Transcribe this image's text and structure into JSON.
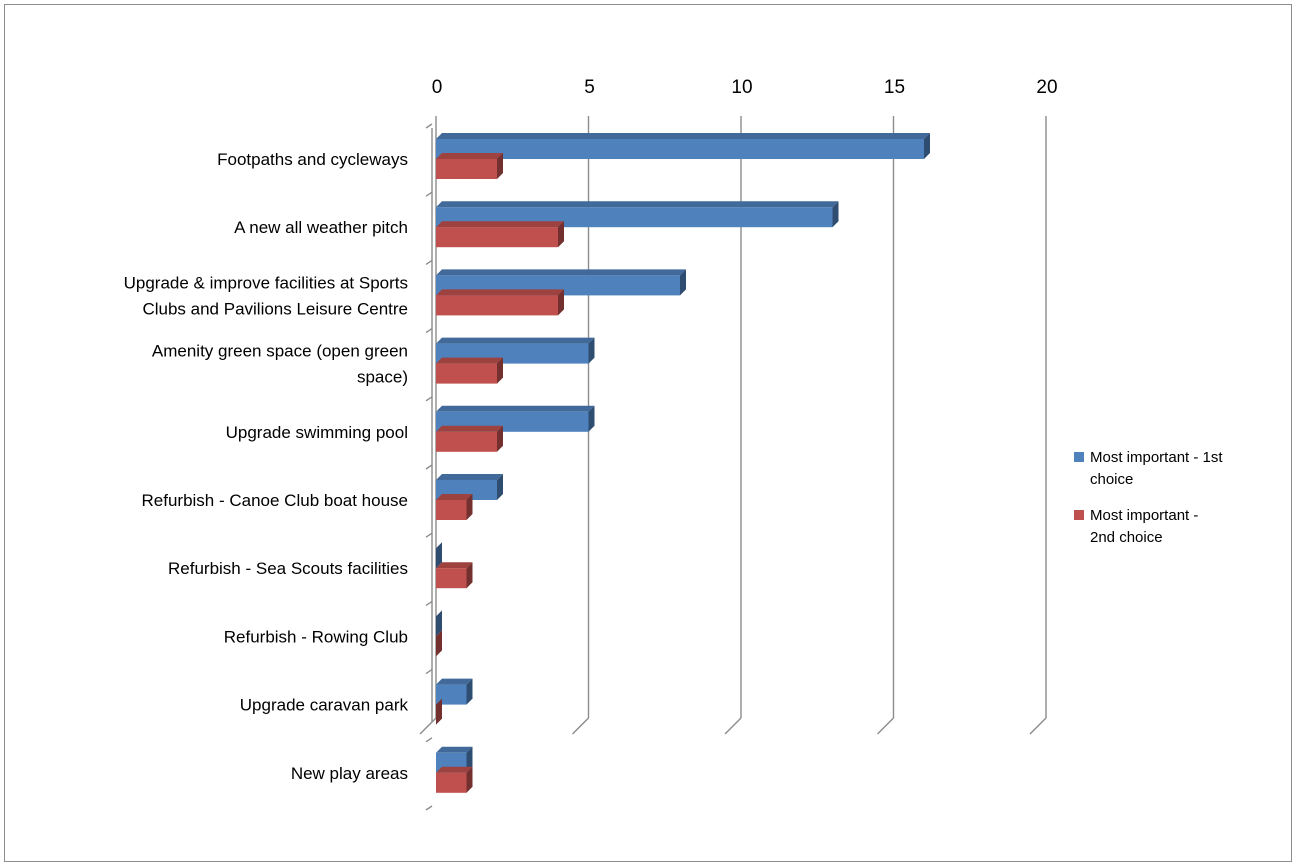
{
  "chart_data": {
    "type": "bar",
    "orientation": "horizontal",
    "style": "3d",
    "categories": [
      "Footpaths and cycleways",
      "A new all weather pitch",
      "Upgrade & improve facilities at Sports Clubs and Pavilions Leisure Centre",
      "Amenity green space (open green space)",
      "Upgrade swimming pool",
      "Refurbish - Canoe Club boat house",
      "Refurbish - Sea Scouts facilities",
      "Refurbish - Rowing Club",
      "Upgrade caravan park",
      "New play areas"
    ],
    "category_label_lines": [
      [
        "Footpaths and cycleways"
      ],
      [
        "A new all weather pitch"
      ],
      [
        "Upgrade & improve facilities at Sports",
        "Clubs and Pavilions Leisure Centre"
      ],
      [
        "Amenity green space (open green",
        "space)"
      ],
      [
        "Upgrade swimming pool"
      ],
      [
        "Refurbish - Canoe Club boat house"
      ],
      [
        "Refurbish - Sea Scouts facilities"
      ],
      [
        "Refurbish - Rowing Club"
      ],
      [
        "Upgrade caravan park"
      ],
      [
        "New play areas"
      ]
    ],
    "series": [
      {
        "name": "Most important - 1st choice",
        "legend_lines": [
          "Most important - 1st",
          "choice"
        ],
        "color": "#4F81BD",
        "values": [
          16,
          13,
          8,
          5,
          5,
          2,
          0,
          0,
          1,
          1
        ]
      },
      {
        "name": "Most important - 2nd choice",
        "legend_lines": [
          "Most important -",
          "2nd choice"
        ],
        "color": "#C0504D",
        "values": [
          2,
          4,
          4,
          2,
          2,
          1,
          1,
          0,
          0,
          1
        ]
      }
    ],
    "xlim": [
      0,
      20
    ],
    "x_ticks": [
      "0",
      "5",
      "10",
      "15",
      "20"
    ],
    "x_tick_values": [
      0,
      5,
      10,
      15,
      20
    ],
    "axis_position": "top",
    "grid": true,
    "legend_position": "right",
    "title": "",
    "xlabel": "",
    "ylabel": ""
  }
}
